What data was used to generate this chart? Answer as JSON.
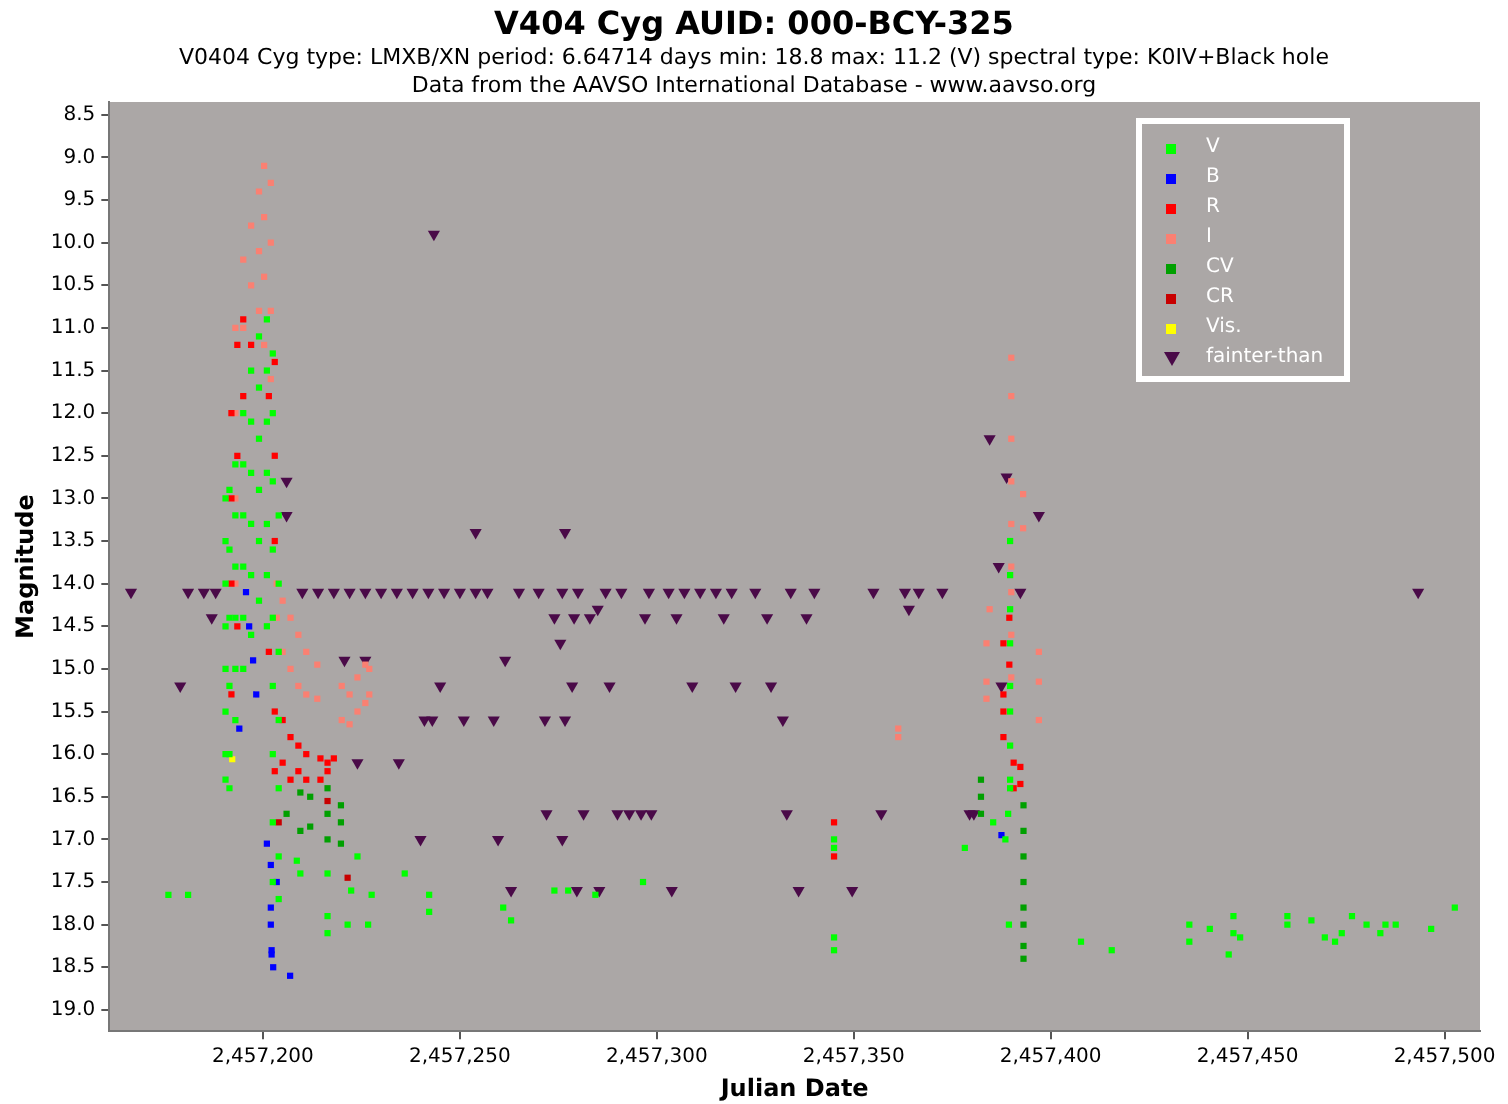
{
  "chart_data": {
    "type": "scatter",
    "title": "V404 Cyg   AUID: 000-BCY-325",
    "subtitle": "V0404 Cyg   type: LMXB/XN   period: 6.64714 days   min: 18.8   max: 11.2 (V)   spectral type: K0IV+Black hole",
    "annotations": [
      "Data from the AAVSO International Database - www.aavso.org"
    ],
    "xlabel": "Julian Date",
    "ylabel": "Magnitude",
    "xlim": [
      2457161,
      2457509
    ],
    "ylim": [
      19.25,
      8.35
    ],
    "xticks": [
      {
        "value": 2457200,
        "label": "2,457,200"
      },
      {
        "value": 2457250,
        "label": "2,457,250"
      },
      {
        "value": 2457300,
        "label": "2,457,300"
      },
      {
        "value": 2457350,
        "label": "2,457,350"
      },
      {
        "value": 2457400,
        "label": "2,457,400"
      },
      {
        "value": 2457450,
        "label": "2,457,450"
      },
      {
        "value": 2457500,
        "label": "2,457,500"
      }
    ],
    "yticks": [
      {
        "value": 8.5,
        "label": "8.5"
      },
      {
        "value": 9,
        "label": "9.0"
      },
      {
        "value": 9.5,
        "label": "9.5"
      },
      {
        "value": 10,
        "label": "10.0"
      },
      {
        "value": 10.5,
        "label": "10.5"
      },
      {
        "value": 11,
        "label": "11.0"
      },
      {
        "value": 11.5,
        "label": "11.5"
      },
      {
        "value": 12,
        "label": "12.0"
      },
      {
        "value": 12.5,
        "label": "12.5"
      },
      {
        "value": 13,
        "label": "13.0"
      },
      {
        "value": 13.5,
        "label": "13.5"
      },
      {
        "value": 14,
        "label": "14.0"
      },
      {
        "value": 14.5,
        "label": "14.5"
      },
      {
        "value": 15,
        "label": "15.0"
      },
      {
        "value": 15.5,
        "label": "15.5"
      },
      {
        "value": 16,
        "label": "16.0"
      },
      {
        "value": 16.5,
        "label": "16.5"
      },
      {
        "value": 17,
        "label": "17.0"
      },
      {
        "value": 17.5,
        "label": "17.5"
      },
      {
        "value": 18,
        "label": "18.0"
      },
      {
        "value": 18.5,
        "label": "18.5"
      },
      {
        "value": 19,
        "label": "19.0"
      }
    ],
    "legend": "top right",
    "series": [
      {
        "name": "V",
        "color": "#00ff00",
        "marker": "square",
        "x": [
          2457176,
          2457181,
          2457190.5,
          2457190.5,
          2457190.5,
          2457190.5,
          2457190.5,
          2457190.5,
          2457190.5,
          2457190.5,
          2457191.5,
          2457191.5,
          2457191.5,
          2457191.5,
          2457191.5,
          2457191.5,
          2457193,
          2457193,
          2457193,
          2457193,
          2457193,
          2457193,
          2457195,
          2457195,
          2457195,
          2457195,
          2457195,
          2457195,
          2457197,
          2457197,
          2457197,
          2457197,
          2457197,
          2457197,
          2457199,
          2457199,
          2457199,
          2457199,
          2457199,
          2457199,
          2457201,
          2457201,
          2457201,
          2457201,
          2457201,
          2457201,
          2457201,
          2457202.5,
          2457202.5,
          2457202.5,
          2457202.5,
          2457202.5,
          2457202.5,
          2457202.5,
          2457202.5,
          2457202.5,
          2457204,
          2457204,
          2457204,
          2457204,
          2457204,
          2457204,
          2457204,
          2457208.6,
          2457209.5,
          2457216.4,
          2457216.4,
          2457216.4,
          2457221.5,
          2457222.4,
          2457224,
          2457226.7,
          2457227.6,
          2457236,
          2457242.2,
          2457242.2,
          2457261,
          2457263,
          2457274,
          2457277.5,
          2457284.4,
          2457296.5,
          2457345,
          2457345,
          2457345,
          2457345,
          2457378.2,
          2457385.4,
          2457389.7,
          2457389.7,
          2457389.7,
          2457389.7,
          2457389.7,
          2457389.7,
          2457389.7,
          2457389.7,
          2457389.7,
          2457389.2,
          2457388.5,
          2457389.4,
          2457407.7,
          2457415.5,
          2457435.2,
          2457435.2,
          2457440.4,
          2457446.4,
          2457446.4,
          2457448.1,
          2457445.2,
          2457460.1,
          2457460.1,
          2457466.2,
          2457469.6,
          2457472.2,
          2457473.9,
          2457476.5,
          2457480.2,
          2457483.7,
          2457485,
          2457487.6,
          2457496.6,
          2457502.6
        ],
        "values": [
          17.65,
          17.65,
          13.0,
          13.5,
          14.0,
          14.5,
          15.0,
          15.5,
          16.0,
          16.3,
          12.9,
          13.6,
          14.4,
          15.2,
          16.0,
          16.4,
          12.6,
          13.2,
          13.8,
          14.4,
          15.0,
          15.6,
          12.0,
          12.6,
          13.2,
          13.8,
          14.4,
          15.0,
          11.5,
          12.1,
          12.7,
          13.3,
          13.9,
          14.6,
          11.1,
          11.7,
          12.3,
          12.9,
          13.5,
          14.2,
          10.9,
          11.5,
          12.1,
          12.7,
          13.3,
          13.9,
          14.5,
          11.3,
          12.0,
          12.8,
          13.6,
          14.4,
          15.2,
          16.0,
          16.8,
          17.5,
          13.2,
          14.0,
          14.8,
          15.6,
          16.4,
          17.2,
          17.7,
          17.25,
          17.4,
          17.4,
          17.9,
          18.1,
          18.0,
          17.6,
          17.2,
          18.0,
          17.65,
          17.4,
          17.65,
          17.85,
          17.8,
          17.95,
          17.6,
          17.6,
          17.65,
          17.5,
          17.0,
          17.1,
          18.15,
          18.3,
          17.1,
          16.8,
          13.5,
          13.9,
          14.3,
          14.7,
          15.2,
          15.5,
          15.9,
          16.3,
          16.4,
          16.7,
          17.0,
          18.0,
          18.2,
          18.3,
          18.0,
          18.2,
          18.05,
          17.9,
          18.1,
          18.15,
          18.35,
          17.9,
          18.0,
          17.95,
          18.15,
          18.2,
          18.1,
          17.9,
          18.0,
          18.1,
          18.0,
          18.0,
          18.05,
          17.8
        ]
      },
      {
        "name": "B",
        "color": "#0000ff",
        "marker": "square",
        "x": [
          2457194,
          2457195.7,
          2457196.5,
          2457197.5,
          2457198.3,
          2457201,
          2457202,
          2457203.5,
          2457202,
          2457202,
          2457202.2,
          2457202.2,
          2457202.6,
          2457206.9,
          2457387.5
        ],
        "values": [
          15.7,
          14.1,
          14.5,
          14.9,
          15.3,
          17.05,
          17.3,
          17.5,
          17.8,
          18.0,
          18.3,
          18.35,
          18.5,
          18.6,
          16.95
        ]
      },
      {
        "name": "R",
        "color": "#ff0000",
        "marker": "square",
        "x": [
          2457192,
          2457192,
          2457192,
          2457192,
          2457193.5,
          2457193.5,
          2457193.5,
          2457195,
          2457195,
          2457197,
          2457201.5,
          2457201.5,
          2457203,
          2457203,
          2457203,
          2457203,
          2457203,
          2457205,
          2457205,
          2457207,
          2457207,
          2457209,
          2457209,
          2457211,
          2457211,
          2457214.6,
          2457214.6,
          2457216.4,
          2457216.4,
          2457218,
          2457345,
          2457345,
          2457388,
          2457388,
          2457388,
          2457389.5,
          2457388,
          2457389.5,
          2457390.6,
          2457390.6,
          2457392.3,
          2457392.3
        ],
        "values": [
          12.0,
          13.0,
          14.0,
          15.3,
          11.2,
          12.5,
          14.5,
          10.9,
          11.8,
          11.2,
          11.8,
          14.8,
          11.4,
          12.5,
          13.5,
          15.5,
          16.2,
          15.6,
          16.1,
          15.8,
          16.3,
          15.9,
          16.2,
          16.0,
          16.3,
          16.05,
          16.3,
          16.1,
          16.2,
          16.05,
          16.8,
          17.2,
          15.3,
          15.5,
          15.8,
          14.4,
          14.7,
          14.95,
          16.1,
          16.4,
          16.15,
          16.35
        ]
      },
      {
        "name": "I",
        "color": "#fa8072",
        "marker": "square",
        "x": [
          2457193,
          2457193,
          2457193,
          2457193,
          2457195,
          2457195,
          2457197,
          2457197,
          2457199,
          2457199,
          2457199,
          2457200.3,
          2457200.3,
          2457200.3,
          2457200.3,
          2457202,
          2457202,
          2457202,
          2457202,
          2457203.5,
          2457203.5,
          2457205,
          2457205,
          2457207,
          2457207,
          2457209,
          2457209,
          2457211,
          2457211,
          2457213.8,
          2457213.8,
          2457220,
          2457220,
          2457222,
          2457222,
          2457224,
          2457224,
          2457226,
          2457226,
          2457227,
          2457227,
          2457361.3,
          2457361.3,
          2457390,
          2457390,
          2457390,
          2457390,
          2457390,
          2457390,
          2457390,
          2457390,
          2457390,
          2457393,
          2457393,
          2457383.7,
          2457383.7,
          2457383.7,
          2457384.5,
          2457397,
          2457397,
          2457397
        ],
        "values": [
          11.0,
          12.0,
          13.0,
          14.0,
          10.2,
          11.0,
          9.8,
          10.5,
          9.4,
          10.1,
          10.8,
          9.1,
          9.7,
          10.4,
          11.2,
          9.3,
          10.0,
          10.8,
          11.6,
          14.0,
          14.4,
          14.2,
          14.8,
          14.4,
          15.0,
          14.6,
          15.2,
          14.8,
          15.3,
          14.95,
          15.35,
          15.2,
          15.6,
          15.3,
          15.65,
          15.1,
          15.5,
          14.95,
          15.4,
          15.0,
          15.3,
          15.7,
          15.8,
          11.35,
          11.8,
          12.3,
          12.8,
          13.3,
          13.8,
          14.1,
          14.6,
          15.1,
          12.95,
          13.35,
          14.7,
          15.15,
          15.35,
          14.3,
          14.8,
          15.15,
          15.6
        ]
      },
      {
        "name": "CV",
        "color": "#00a000",
        "marker": "square",
        "x": [
          2457206,
          2457209.5,
          2457209.5,
          2457212,
          2457212,
          2457216.4,
          2457216.4,
          2457216.4,
          2457219.8,
          2457219.8,
          2457219.8,
          2457382.3,
          2457382.3,
          2457382.3,
          2457393.1,
          2457393.1,
          2457393.1,
          2457393.1,
          2457393.1,
          2457393.1,
          2457393.1,
          2457393.1
        ],
        "values": [
          16.7,
          16.45,
          16.9,
          16.5,
          16.85,
          16.4,
          16.7,
          17.0,
          16.6,
          16.8,
          17.05,
          16.3,
          16.5,
          16.7,
          16.6,
          16.9,
          17.2,
          17.5,
          17.8,
          18.0,
          18.25,
          18.4
        ]
      },
      {
        "name": "CR",
        "color": "#c80000",
        "marker": "square",
        "x": [
          2457204,
          2457216.4,
          2457221.5
        ],
        "values": [
          16.8,
          16.55,
          17.45
        ]
      },
      {
        "name": "Vis.",
        "color": "#ffff00",
        "marker": "square",
        "x": [
          2457192.2
        ],
        "values": [
          16.06
        ]
      },
      {
        "name": "fainter-than",
        "color": "#4a0a48",
        "marker": "triangle",
        "x": [
          2457166.5,
          2457181,
          2457185,
          2457188,
          2457210,
          2457214,
          2457218,
          2457222,
          2457226,
          2457230,
          2457234,
          2457238,
          2457242,
          2457246,
          2457250,
          2457254,
          2457257,
          2457265,
          2457270,
          2457276,
          2457280,
          2457287,
          2457291,
          2457298,
          2457303,
          2457307,
          2457311,
          2457315,
          2457319,
          2457325,
          2457334,
          2457340,
          2457355,
          2457363,
          2457366.5,
          2457372.5,
          2457392.3,
          2457493.3,
          2457285,
          2457364,
          2457187,
          2457274,
          2457279,
          2457283,
          2457297,
          2457305,
          2457317,
          2457328,
          2457338,
          2457275.5,
          2457220.7,
          2457226,
          2457261.5,
          2457179,
          2457245,
          2457278.5,
          2457288,
          2457309,
          2457320,
          2457329,
          2457387.5,
          2457241,
          2457243,
          2457251,
          2457258.6,
          2457271.6,
          2457276.7,
          2457332,
          2457224,
          2457234.5,
          2457272,
          2457281.4,
          2457290,
          2457293,
          2457296,
          2457298.6,
          2457333,
          2457357,
          2457379.4,
          2457380.5,
          2457240,
          2457259.7,
          2457276,
          2457263,
          2457279.7,
          2457285.4,
          2457303.8,
          2457336,
          2457349.6,
          2457206,
          2457206,
          2457254,
          2457276.7,
          2457243.4,
          2457384.5,
          2457388.8,
          2457397,
          2457386.8
        ],
        "values": [
          14.1,
          14.1,
          14.1,
          14.1,
          14.1,
          14.1,
          14.1,
          14.1,
          14.1,
          14.1,
          14.1,
          14.1,
          14.1,
          14.1,
          14.1,
          14.1,
          14.1,
          14.1,
          14.1,
          14.1,
          14.1,
          14.1,
          14.1,
          14.1,
          14.1,
          14.1,
          14.1,
          14.1,
          14.1,
          14.1,
          14.1,
          14.1,
          14.1,
          14.1,
          14.1,
          14.1,
          14.1,
          14.1,
          14.3,
          14.3,
          14.4,
          14.4,
          14.4,
          14.4,
          14.4,
          14.4,
          14.4,
          14.4,
          14.4,
          14.7,
          14.9,
          14.9,
          14.9,
          15.2,
          15.2,
          15.2,
          15.2,
          15.2,
          15.2,
          15.2,
          15.2,
          15.6,
          15.6,
          15.6,
          15.6,
          15.6,
          15.6,
          15.6,
          16.1,
          16.1,
          16.7,
          16.7,
          16.7,
          16.7,
          16.7,
          16.7,
          16.7,
          16.7,
          16.7,
          16.7,
          17.0,
          17.0,
          17.0,
          17.6,
          17.6,
          17.6,
          17.6,
          17.6,
          17.6,
          12.8,
          13.2,
          13.4,
          13.4,
          9.9,
          12.3,
          12.75,
          13.2,
          13.8
        ]
      }
    ]
  }
}
